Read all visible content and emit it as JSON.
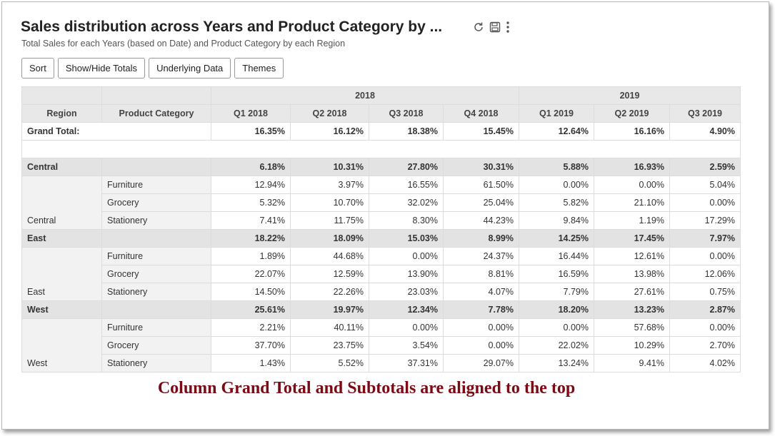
{
  "title": "Sales distribution across Years and Product Category by ...",
  "subtitle": "Total Sales for each Years (based on Date) and Product Category by each Region",
  "header_icons": [
    "refresh-icon",
    "save-icon",
    "more-icon"
  ],
  "toolbar": {
    "sort": "Sort",
    "show_hide_totals": "Show/Hide Totals",
    "underlying_data": "Underlying Data",
    "themes": "Themes"
  },
  "table": {
    "year_headers": [
      "2018",
      "2019"
    ],
    "col_headers": {
      "region": "Region",
      "category": "Product Category"
    },
    "quarters": [
      "Q1 2018",
      "Q2 2018",
      "Q3 2018",
      "Q4 2018",
      "Q1 2019",
      "Q2 2019",
      "Q3 2019"
    ],
    "grand_total": {
      "label": "Grand Total:",
      "values": [
        "16.35%",
        "16.12%",
        "18.38%",
        "15.45%",
        "12.64%",
        "16.16%",
        "4.90%"
      ]
    },
    "regions": [
      {
        "name": "Central",
        "subtotal": [
          "6.18%",
          "10.31%",
          "27.80%",
          "30.31%",
          "5.88%",
          "16.93%",
          "2.59%"
        ],
        "rows": [
          {
            "category": "Furniture",
            "values": [
              "12.94%",
              "3.97%",
              "16.55%",
              "61.50%",
              "0.00%",
              "0.00%",
              "5.04%"
            ]
          },
          {
            "category": "Grocery",
            "values": [
              "5.32%",
              "10.70%",
              "32.02%",
              "25.04%",
              "5.82%",
              "21.10%",
              "0.00%"
            ]
          },
          {
            "category": "Stationery",
            "values": [
              "7.41%",
              "11.75%",
              "8.30%",
              "44.23%",
              "9.84%",
              "1.19%",
              "17.29%"
            ]
          }
        ]
      },
      {
        "name": "East",
        "subtotal": [
          "18.22%",
          "18.09%",
          "15.03%",
          "8.99%",
          "14.25%",
          "17.45%",
          "7.97%"
        ],
        "rows": [
          {
            "category": "Furniture",
            "values": [
              "1.89%",
              "44.68%",
              "0.00%",
              "24.37%",
              "16.44%",
              "12.61%",
              "0.00%"
            ]
          },
          {
            "category": "Grocery",
            "values": [
              "22.07%",
              "12.59%",
              "13.90%",
              "8.81%",
              "16.59%",
              "13.98%",
              "12.06%"
            ]
          },
          {
            "category": "Stationery",
            "values": [
              "14.50%",
              "22.26%",
              "23.03%",
              "4.07%",
              "7.79%",
              "27.61%",
              "0.75%"
            ]
          }
        ]
      },
      {
        "name": "West",
        "subtotal": [
          "25.61%",
          "19.97%",
          "12.34%",
          "7.78%",
          "18.20%",
          "13.23%",
          "2.87%"
        ],
        "rows": [
          {
            "category": "Furniture",
            "values": [
              "2.21%",
              "40.11%",
              "0.00%",
              "0.00%",
              "0.00%",
              "57.68%",
              "0.00%"
            ]
          },
          {
            "category": "Grocery",
            "values": [
              "37.70%",
              "23.75%",
              "3.54%",
              "0.00%",
              "22.02%",
              "10.29%",
              "2.70%"
            ]
          },
          {
            "category": "Stationery",
            "values": [
              "1.43%",
              "5.52%",
              "37.31%",
              "29.07%",
              "13.24%",
              "9.41%",
              "4.02%"
            ]
          }
        ]
      }
    ]
  },
  "caption": "Column Grand Total and Subtotals are aligned to the top"
}
